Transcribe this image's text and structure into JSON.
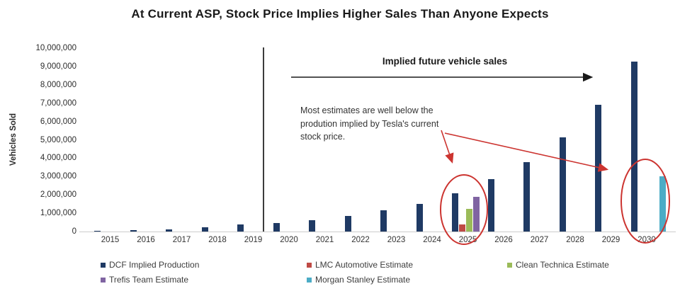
{
  "title": "At Current ASP, Stock Price Implies Higher Sales Than Anyone Expects",
  "chart_data": {
    "type": "bar",
    "title": "At Current ASP, Stock Price Implies Higher Sales Than Anyone Expects",
    "xlabel": "",
    "ylabel": "Vehicles Sold",
    "ylim": [
      0,
      10000000
    ],
    "ytick_interval": 1000000,
    "grid": false,
    "legend_position": "bottom",
    "categories": [
      "2015",
      "2016",
      "2017",
      "2018",
      "2019",
      "2020",
      "2021",
      "2022",
      "2023",
      "2024",
      "2025",
      "2026",
      "2027",
      "2028",
      "2029",
      "2030"
    ],
    "series": [
      {
        "name": "DCF Implied Production",
        "color": "#1f3a64",
        "values": [
          50000,
          80000,
          100000,
          250000,
          370000,
          450000,
          620000,
          850000,
          1150000,
          1500000,
          2100000,
          2850000,
          3800000,
          5150000,
          6900000,
          9250000
        ]
      },
      {
        "name": "LMC Automotive Estimate",
        "color": "#bf4a45",
        "values": [
          null,
          null,
          null,
          null,
          null,
          null,
          null,
          null,
          null,
          null,
          400000,
          null,
          null,
          null,
          null,
          null
        ]
      },
      {
        "name": "Clean Technica Estimate",
        "color": "#9bbb59",
        "values": [
          null,
          null,
          null,
          null,
          null,
          null,
          null,
          null,
          null,
          null,
          1250000,
          null,
          null,
          null,
          null,
          null
        ]
      },
      {
        "name": "Trefis Team Estimate",
        "color": "#8064a2",
        "values": [
          null,
          null,
          null,
          null,
          null,
          null,
          null,
          null,
          null,
          null,
          1900000,
          null,
          null,
          null,
          null,
          null
        ]
      },
      {
        "name": "Morgan Stanley Estimate",
        "color": "#4bacc6",
        "values": [
          null,
          null,
          null,
          null,
          null,
          null,
          null,
          null,
          null,
          null,
          null,
          null,
          null,
          null,
          null,
          3000000
        ]
      }
    ],
    "annotations": {
      "divider_after_category": "2019",
      "future_arrow_label": "Implied future vehicle sales",
      "note": "Most estimates are well below the prodution implied by Tesla's current stock price.",
      "circled_categories": [
        "2025",
        "2030"
      ],
      "highlight_color": "#cc3430"
    }
  }
}
